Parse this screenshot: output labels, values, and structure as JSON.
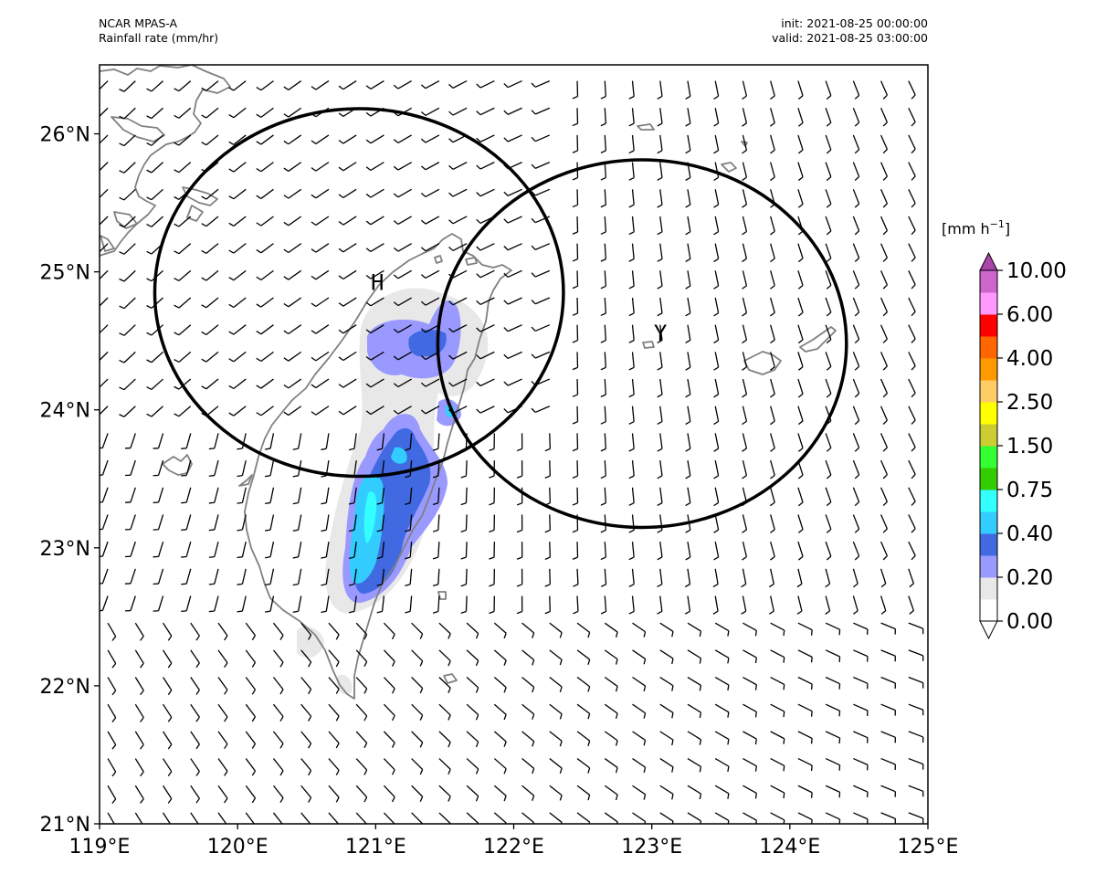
{
  "header": {
    "model": "NCAR MPAS-A",
    "field": "Rainfall rate (mm/hr)",
    "init": "init: 2021-08-25 00:00:00",
    "valid": "valid: 2021-08-25 03:00:00"
  },
  "map": {
    "projection": "PlateCarree",
    "lon_range": [
      119,
      125
    ],
    "lat_range": [
      21,
      26.5
    ],
    "lon_ticks": [
      119,
      120,
      121,
      122,
      123,
      124,
      125
    ],
    "lon_tick_labels": [
      "119°E",
      "120°E",
      "121°E",
      "122°E",
      "123°E",
      "124°E",
      "125°E"
    ],
    "lat_ticks": [
      21,
      22,
      23,
      24,
      25,
      26
    ],
    "lat_tick_labels": [
      "21°N",
      "22°N",
      "23°N",
      "24°N",
      "25°N",
      "26°N"
    ],
    "coastline_color": "#808080",
    "wind_barb_color": "#000000"
  },
  "circles": [
    {
      "label": "H",
      "center_lon": 120.88,
      "center_lat": 24.85,
      "radius_deg": 1.48
    },
    {
      "label": "Y",
      "center_lon": 122.93,
      "center_lat": 24.48,
      "radius_deg": 1.48
    }
  ],
  "rain_areas": [
    {
      "lon": 121.2,
      "lat": 24.4,
      "level": 1
    },
    {
      "lon": 121.45,
      "lat": 24.55,
      "level": 2
    },
    {
      "lon": 121.2,
      "lat": 23.45,
      "level": 2
    },
    {
      "lon": 121.0,
      "lat": 23.05,
      "level": 4
    }
  ],
  "colorbar": {
    "title": "[mm h",
    "title_sup": "−1",
    "title_end": "]",
    "levels": [
      0.0,
      0.1,
      0.2,
      0.3,
      0.4,
      0.5,
      0.75,
      1.0,
      1.5,
      2.0,
      2.5,
      3.0,
      4.0,
      5.0,
      6.0,
      8.0,
      10.0
    ],
    "tick_labels": [
      "0.00",
      "0.20",
      "0.40",
      "0.75",
      "1.50",
      "2.50",
      "4.00",
      "6.00",
      "10.00"
    ],
    "colors": [
      "#ffffff",
      "#e8e8e8",
      "#9999ff",
      "#4169e1",
      "#33ccff",
      "#33ffff",
      "#33cc00",
      "#33ff33",
      "#cccc33",
      "#ffff00",
      "#ffcc66",
      "#ff9900",
      "#ff6600",
      "#ff0000",
      "#ff99ff",
      "#cc66cc"
    ],
    "extend_max_color": "#aa44aa",
    "extend_min_color": "#ffffff"
  }
}
